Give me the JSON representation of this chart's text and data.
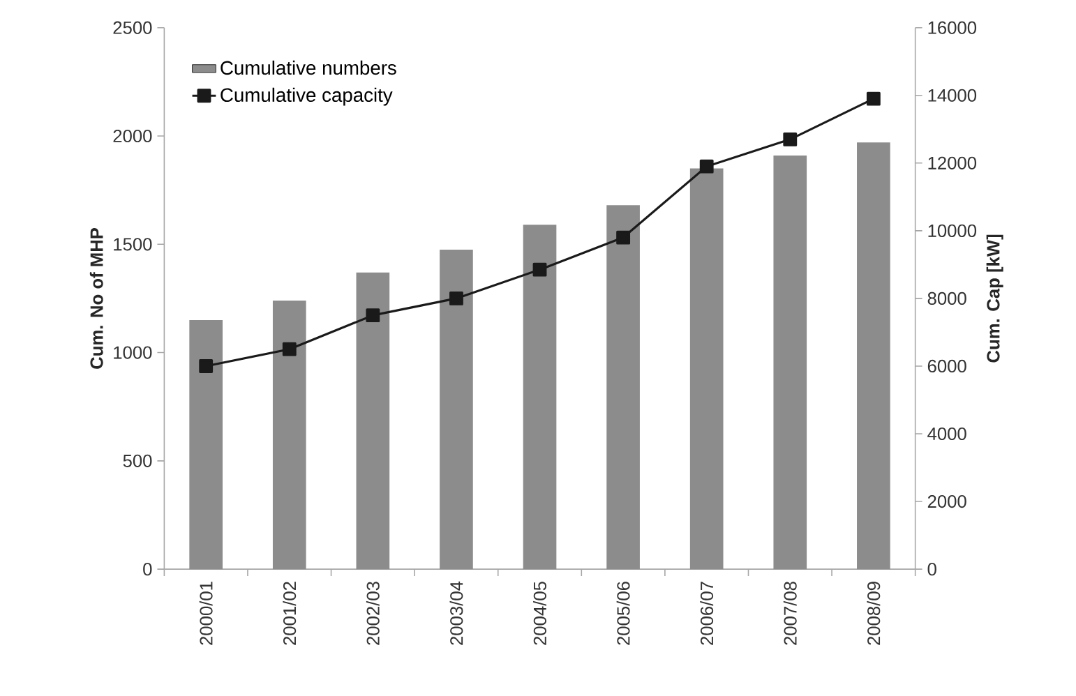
{
  "chart_data": {
    "type": "bar",
    "ylabel": "Cum. No of MHP",
    "y2label": "Cum. Cap [kW]",
    "categories": [
      "2000/01",
      "2001/02",
      "2002/03",
      "2003/04",
      "2004/05",
      "2005/06",
      "2006/07",
      "2007/08",
      "2008/09"
    ],
    "series": [
      {
        "name": "Cumulative numbers",
        "color": "#8c8c8c",
        "values": [
          1150,
          1240,
          1370,
          1475,
          1590,
          1680,
          1850,
          1910,
          1970
        ]
      },
      {
        "name": "Cumulative capacity",
        "type": "line",
        "axis": "y2",
        "color": "#1a1a1a",
        "marker": "square",
        "values": [
          6000,
          6500,
          7500,
          8000,
          8850,
          9800,
          11900,
          12700,
          13900
        ]
      }
    ],
    "ylim": [
      0,
      2500
    ],
    "yticks": [
      0,
      500,
      1000,
      1500,
      2000,
      2500
    ],
    "y2lim": [
      0,
      16000
    ],
    "y2ticks": [
      0,
      2000,
      4000,
      6000,
      8000,
      10000,
      12000,
      14000,
      16000
    ],
    "legend": "top left",
    "grid": false
  }
}
